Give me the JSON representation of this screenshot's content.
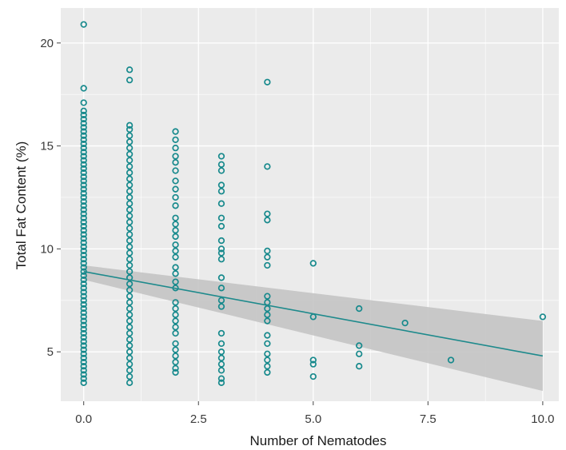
{
  "chart_data": {
    "type": "scatter",
    "title": "",
    "xlabel": "Number of Nematodes",
    "ylabel": "Total Fat Content (%)",
    "xlim": [
      -0.5,
      10.35
    ],
    "ylim": [
      2.6,
      21.7
    ],
    "x_ticks": [
      0,
      2.5,
      5,
      7.5,
      10
    ],
    "x_tick_labels": [
      "0.0",
      "2.5",
      "5.0",
      "7.5",
      "10.0"
    ],
    "y_ticks": [
      5,
      10,
      15,
      20
    ],
    "y_tick_labels": [
      "5",
      "10",
      "15",
      "20"
    ],
    "grid": true,
    "legend": "none",
    "colors": {
      "panel_background": "#ebebeb",
      "grid_major": "#ffffff",
      "points": "#16898c",
      "regression_line": "#1e8a8c",
      "confidence_band": "#c4c4c4"
    },
    "series": [
      {
        "points": [
          [
            0,
            20.9
          ],
          [
            0,
            17.8
          ],
          [
            0,
            17.1
          ],
          [
            0,
            16.7
          ],
          [
            0,
            16.5
          ],
          [
            0,
            16.3
          ],
          [
            0,
            16.1
          ],
          [
            0,
            15.9
          ],
          [
            0,
            15.7
          ],
          [
            0,
            15.5
          ],
          [
            0,
            15.3
          ],
          [
            0,
            15.1
          ],
          [
            0,
            14.9
          ],
          [
            0,
            14.7
          ],
          [
            0,
            14.5
          ],
          [
            0,
            14.3
          ],
          [
            0,
            14.1
          ],
          [
            0,
            13.9
          ],
          [
            0,
            13.7
          ],
          [
            0,
            13.5
          ],
          [
            0,
            13.3
          ],
          [
            0,
            13.1
          ],
          [
            0,
            12.9
          ],
          [
            0,
            12.7
          ],
          [
            0,
            12.5
          ],
          [
            0,
            12.3
          ],
          [
            0,
            12.1
          ],
          [
            0,
            11.9
          ],
          [
            0,
            11.7
          ],
          [
            0,
            11.5
          ],
          [
            0,
            11.3
          ],
          [
            0,
            11.1
          ],
          [
            0,
            10.9
          ],
          [
            0,
            10.7
          ],
          [
            0,
            10.5
          ],
          [
            0,
            10.3
          ],
          [
            0,
            10.1
          ],
          [
            0,
            9.9
          ],
          [
            0,
            9.7
          ],
          [
            0,
            9.5
          ],
          [
            0,
            9.3
          ],
          [
            0,
            9.1
          ],
          [
            0,
            8.9
          ],
          [
            0,
            8.7
          ],
          [
            0,
            8.5
          ],
          [
            0,
            8.3
          ],
          [
            0,
            8.1
          ],
          [
            0,
            7.9
          ],
          [
            0,
            7.7
          ],
          [
            0,
            7.5
          ],
          [
            0,
            7.3
          ],
          [
            0,
            7.1
          ],
          [
            0,
            6.9
          ],
          [
            0,
            6.7
          ],
          [
            0,
            6.5
          ],
          [
            0,
            6.3
          ],
          [
            0,
            6.1
          ],
          [
            0,
            5.9
          ],
          [
            0,
            5.7
          ],
          [
            0,
            5.5
          ],
          [
            0,
            5.3
          ],
          [
            0,
            5.1
          ],
          [
            0,
            4.9
          ],
          [
            0,
            4.7
          ],
          [
            0,
            4.5
          ],
          [
            0,
            4.3
          ],
          [
            0,
            4.1
          ],
          [
            0,
            3.9
          ],
          [
            0,
            3.7
          ],
          [
            0,
            3.5
          ],
          [
            1,
            18.7
          ],
          [
            1,
            18.2
          ],
          [
            1,
            16.0
          ],
          [
            1,
            15.8
          ],
          [
            1,
            15.5
          ],
          [
            1,
            15.2
          ],
          [
            1,
            14.9
          ],
          [
            1,
            14.6
          ],
          [
            1,
            14.3
          ],
          [
            1,
            14.0
          ],
          [
            1,
            13.7
          ],
          [
            1,
            13.4
          ],
          [
            1,
            13.1
          ],
          [
            1,
            12.8
          ],
          [
            1,
            12.5
          ],
          [
            1,
            12.2
          ],
          [
            1,
            11.9
          ],
          [
            1,
            11.6
          ],
          [
            1,
            11.3
          ],
          [
            1,
            11.0
          ],
          [
            1,
            10.7
          ],
          [
            1,
            10.4
          ],
          [
            1,
            10.1
          ],
          [
            1,
            9.8
          ],
          [
            1,
            9.5
          ],
          [
            1,
            9.2
          ],
          [
            1,
            8.9
          ],
          [
            1,
            8.6
          ],
          [
            1,
            8.3
          ],
          [
            1,
            8.0
          ],
          [
            1,
            7.7
          ],
          [
            1,
            7.4
          ],
          [
            1,
            7.1
          ],
          [
            1,
            6.8
          ],
          [
            1,
            6.5
          ],
          [
            1,
            6.2
          ],
          [
            1,
            5.9
          ],
          [
            1,
            5.6
          ],
          [
            1,
            5.3
          ],
          [
            1,
            5.0
          ],
          [
            1,
            4.7
          ],
          [
            1,
            4.4
          ],
          [
            1,
            4.1
          ],
          [
            1,
            3.8
          ],
          [
            1,
            3.5
          ],
          [
            2,
            15.7
          ],
          [
            2,
            15.3
          ],
          [
            2,
            14.9
          ],
          [
            2,
            14.5
          ],
          [
            2,
            14.2
          ],
          [
            2,
            13.8
          ],
          [
            2,
            13.3
          ],
          [
            2,
            12.9
          ],
          [
            2,
            12.5
          ],
          [
            2,
            12.1
          ],
          [
            2,
            11.5
          ],
          [
            2,
            11.2
          ],
          [
            2,
            10.9
          ],
          [
            2,
            10.6
          ],
          [
            2,
            10.2
          ],
          [
            2,
            9.9
          ],
          [
            2,
            9.6
          ],
          [
            2,
            9.1
          ],
          [
            2,
            8.8
          ],
          [
            2,
            8.4
          ],
          [
            2,
            8.1
          ],
          [
            2,
            7.4
          ],
          [
            2,
            7.1
          ],
          [
            2,
            6.8
          ],
          [
            2,
            6.5
          ],
          [
            2,
            6.2
          ],
          [
            2,
            5.9
          ],
          [
            2,
            5.4
          ],
          [
            2,
            5.1
          ],
          [
            2,
            4.8
          ],
          [
            2,
            4.5
          ],
          [
            2,
            4.2
          ],
          [
            2,
            4.0
          ],
          [
            3,
            14.5
          ],
          [
            3,
            14.1
          ],
          [
            3,
            13.8
          ],
          [
            3,
            13.1
          ],
          [
            3,
            12.8
          ],
          [
            3,
            12.2
          ],
          [
            3,
            11.5
          ],
          [
            3,
            11.1
          ],
          [
            3,
            10.4
          ],
          [
            3,
            10.0
          ],
          [
            3,
            9.8
          ],
          [
            3,
            9.5
          ],
          [
            3,
            8.6
          ],
          [
            3,
            8.1
          ],
          [
            3,
            7.5
          ],
          [
            3,
            7.2
          ],
          [
            3,
            5.9
          ],
          [
            3,
            5.4
          ],
          [
            3,
            5.0
          ],
          [
            3,
            4.7
          ],
          [
            3,
            4.4
          ],
          [
            3,
            4.1
          ],
          [
            3,
            3.7
          ],
          [
            3,
            3.5
          ],
          [
            4,
            18.1
          ],
          [
            4,
            14.0
          ],
          [
            4,
            11.7
          ],
          [
            4,
            11.4
          ],
          [
            4,
            9.9
          ],
          [
            4,
            9.6
          ],
          [
            4,
            9.2
          ],
          [
            4,
            7.7
          ],
          [
            4,
            7.4
          ],
          [
            4,
            7.1
          ],
          [
            4,
            6.8
          ],
          [
            4,
            6.5
          ],
          [
            4,
            5.8
          ],
          [
            4,
            5.4
          ],
          [
            4,
            4.9
          ],
          [
            4,
            4.6
          ],
          [
            4,
            4.3
          ],
          [
            4,
            4.0
          ],
          [
            5,
            9.3
          ],
          [
            5,
            6.7
          ],
          [
            5,
            4.6
          ],
          [
            5,
            4.4
          ],
          [
            5,
            3.8
          ],
          [
            6,
            7.1
          ],
          [
            6,
            5.3
          ],
          [
            6,
            4.9
          ],
          [
            6,
            4.3
          ],
          [
            7,
            6.4
          ],
          [
            8,
            4.6
          ],
          [
            10,
            6.7
          ]
        ]
      }
    ],
    "regression": {
      "x": [
        0,
        10
      ],
      "y": [
        8.9,
        4.8
      ],
      "band_lower": [
        8.5,
        3.1
      ],
      "band_upper": [
        9.2,
        6.5
      ]
    }
  }
}
